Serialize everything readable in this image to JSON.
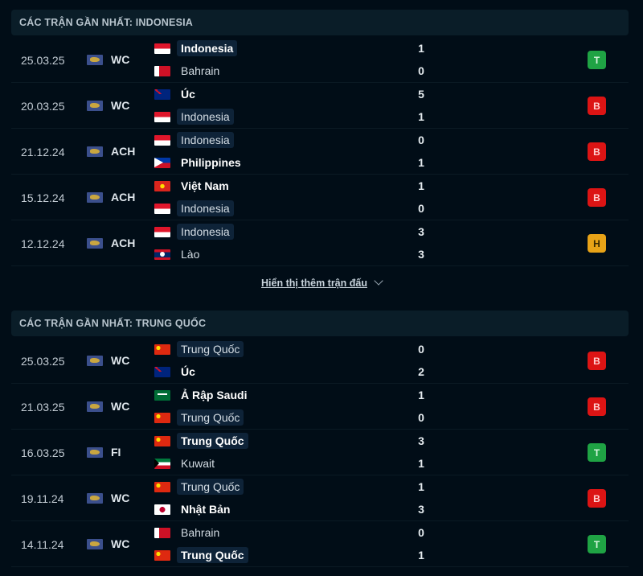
{
  "sections": [
    {
      "title": "CÁC TRẬN GẦN NHẤT: INDONESIA",
      "matches": [
        {
          "date": "25.03.25",
          "comp": "WC",
          "home": {
            "name": "Indonesia",
            "flag": "id",
            "bold": true,
            "hl": true
          },
          "away": {
            "name": "Bahrain",
            "flag": "bh",
            "bold": false,
            "hl": false
          },
          "hs": "1",
          "as": "0",
          "result": "T"
        },
        {
          "date": "20.03.25",
          "comp": "WC",
          "home": {
            "name": "Úc",
            "flag": "au",
            "bold": true,
            "hl": false
          },
          "away": {
            "name": "Indonesia",
            "flag": "id",
            "bold": false,
            "hl": true
          },
          "hs": "5",
          "as": "1",
          "result": "B"
        },
        {
          "date": "21.12.24",
          "comp": "ACH",
          "home": {
            "name": "Indonesia",
            "flag": "id",
            "bold": false,
            "hl": true
          },
          "away": {
            "name": "Philippines",
            "flag": "ph",
            "bold": true,
            "hl": false
          },
          "hs": "0",
          "as": "1",
          "result": "B"
        },
        {
          "date": "15.12.24",
          "comp": "ACH",
          "home": {
            "name": "Việt Nam",
            "flag": "vn",
            "bold": true,
            "hl": false
          },
          "away": {
            "name": "Indonesia",
            "flag": "id",
            "bold": false,
            "hl": true
          },
          "hs": "1",
          "as": "0",
          "result": "B"
        },
        {
          "date": "12.12.24",
          "comp": "ACH",
          "home": {
            "name": "Indonesia",
            "flag": "id",
            "bold": false,
            "hl": true
          },
          "away": {
            "name": "Lào",
            "flag": "la",
            "bold": false,
            "hl": false
          },
          "hs": "3",
          "as": "3",
          "result": "H"
        }
      ],
      "show_more": "Hiển thị thêm trận đấu"
    },
    {
      "title": "CÁC TRẬN GẦN NHẤT: TRUNG QUỐC",
      "matches": [
        {
          "date": "25.03.25",
          "comp": "WC",
          "home": {
            "name": "Trung Quốc",
            "flag": "cn",
            "bold": false,
            "hl": true
          },
          "away": {
            "name": "Úc",
            "flag": "au",
            "bold": true,
            "hl": false
          },
          "hs": "0",
          "as": "2",
          "result": "B"
        },
        {
          "date": "21.03.25",
          "comp": "WC",
          "home": {
            "name": "Ả Rập Saudi",
            "flag": "sa",
            "bold": true,
            "hl": false
          },
          "away": {
            "name": "Trung Quốc",
            "flag": "cn",
            "bold": false,
            "hl": true
          },
          "hs": "1",
          "as": "0",
          "result": "B"
        },
        {
          "date": "16.03.25",
          "comp": "FI",
          "home": {
            "name": "Trung Quốc",
            "flag": "cn",
            "bold": true,
            "hl": true
          },
          "away": {
            "name": "Kuwait",
            "flag": "kw",
            "bold": false,
            "hl": false
          },
          "hs": "3",
          "as": "1",
          "result": "T"
        },
        {
          "date": "19.11.24",
          "comp": "WC",
          "home": {
            "name": "Trung Quốc",
            "flag": "cn",
            "bold": false,
            "hl": true
          },
          "away": {
            "name": "Nhật Bản",
            "flag": "jp",
            "bold": true,
            "hl": false
          },
          "hs": "1",
          "as": "3",
          "result": "B"
        },
        {
          "date": "14.11.24",
          "comp": "WC",
          "home": {
            "name": "Bahrain",
            "flag": "bh",
            "bold": false,
            "hl": false
          },
          "away": {
            "name": "Trung Quốc",
            "flag": "cn",
            "bold": true,
            "hl": true
          },
          "hs": "0",
          "as": "1",
          "result": "T"
        }
      ]
    }
  ],
  "result_colors": {
    "T": "#1fa344",
    "B": "#dc1414",
    "H": "#e8a317"
  },
  "result_text_colors": {
    "T": "#d8f5df",
    "B": "#ffd0d0",
    "H": "#3a2a00"
  },
  "competition_icon": "world-map-icon"
}
